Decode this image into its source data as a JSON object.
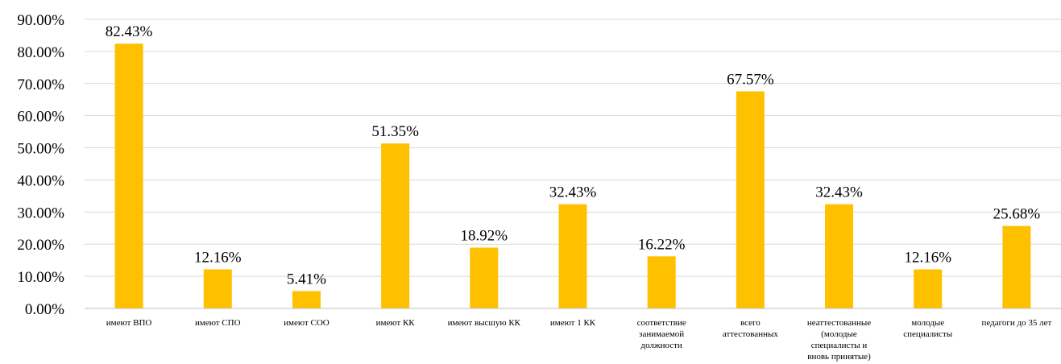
{
  "chart_data": {
    "type": "bar",
    "categories": [
      [
        "имеют ВПО"
      ],
      [
        "имеют СПО"
      ],
      [
        "имеют СОО"
      ],
      [
        "имеют КК"
      ],
      [
        "имеют высшую  КК"
      ],
      [
        "имеют 1 КК"
      ],
      [
        "соответствие",
        "занимаемой",
        "должности"
      ],
      [
        "всего",
        "аттестованных"
      ],
      [
        "неаттестованные",
        "(молодые",
        "специалисты и",
        "вновь принятые)"
      ],
      [
        "молодые",
        "специалисты"
      ],
      [
        "педагоги до 35 лет"
      ]
    ],
    "values": [
      82.43,
      12.16,
      5.41,
      51.35,
      18.92,
      32.43,
      16.22,
      67.57,
      32.43,
      12.16,
      25.68
    ],
    "data_labels": [
      "82.43%",
      "12.16%",
      "5.41%",
      "51.35%",
      "18.92%",
      "32.43%",
      "16.22%",
      "67.57%",
      "32.43%",
      "12.16%",
      "25.68%"
    ],
    "y_ticks": [
      "0.00%",
      "10.00%",
      "20.00%",
      "30.00%",
      "40.00%",
      "50.00%",
      "60.00%",
      "70.00%",
      "80.00%",
      "90.00%"
    ],
    "ylim": [
      0,
      90
    ],
    "title": "",
    "xlabel": "",
    "ylabel": "",
    "grid": true,
    "legend": "none",
    "bar_color": "#FFC000"
  }
}
